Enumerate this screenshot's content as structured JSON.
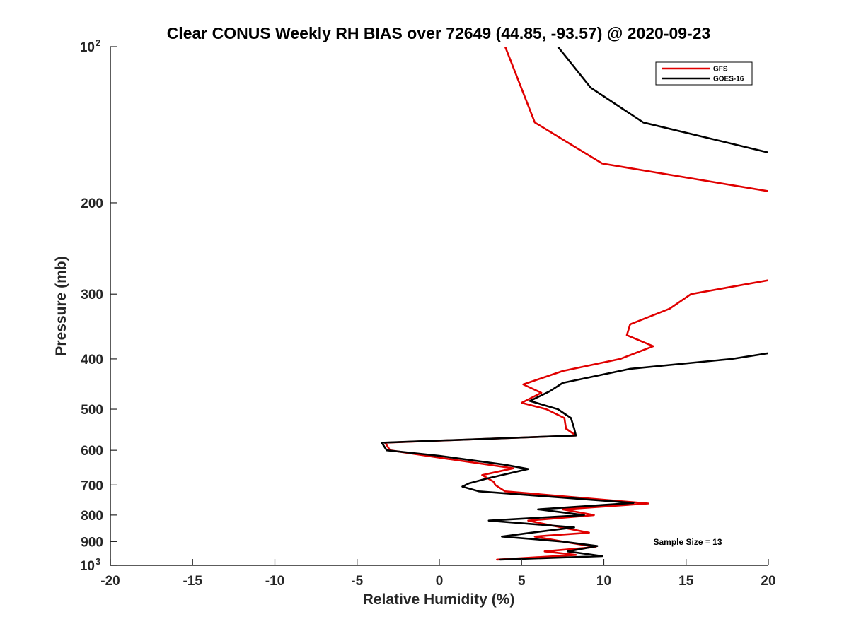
{
  "chart_data": {
    "type": "line",
    "title": "Clear CONUS Weekly RH BIAS over 72649 (44.85, -93.57) @ 2020-09-23",
    "xlabel": "Relative Humidity (%)",
    "ylabel": "Pressure (mb)",
    "xlim": [
      -20,
      20
    ],
    "ylim": [
      100,
      1000
    ],
    "yscale": "log",
    "y_reversed": true,
    "grid": false,
    "legend_position": "top-right",
    "x_ticks": [
      "-20",
      "-15",
      "-10",
      "-5",
      "0",
      "5",
      "10",
      "15",
      "20"
    ],
    "y_ticks": [
      {
        "value": 100,
        "base": "10",
        "exp": "2"
      },
      {
        "value": 200,
        "label": "200"
      },
      {
        "value": 300,
        "label": "300"
      },
      {
        "value": 400,
        "label": "400"
      },
      {
        "value": 500,
        "label": "500"
      },
      {
        "value": 600,
        "label": "600"
      },
      {
        "value": 700,
        "label": "700"
      },
      {
        "value": 800,
        "label": "800"
      },
      {
        "value": 900,
        "label": "900"
      },
      {
        "value": 1000,
        "base": "10",
        "exp": "3"
      }
    ],
    "annotation": "Sample Size = 13",
    "series": [
      {
        "name": "GFS",
        "color": "#e00000",
        "segments": [
          [
            [
              4.0,
              100
            ],
            [
              5.8,
              140
            ],
            [
              9.9,
              168
            ],
            [
              20.0,
              190
            ]
          ],
          [
            [
              20.0,
              282
            ],
            [
              15.3,
              300
            ],
            [
              14.0,
              320
            ],
            [
              11.6,
              343
            ],
            [
              11.4,
              360
            ],
            [
              13.0,
              378
            ],
            [
              11.0,
              400
            ],
            [
              7.5,
              422
            ],
            [
              5.1,
              448
            ],
            [
              6.2,
              465
            ],
            [
              5.0,
              486
            ],
            [
              6.5,
              500
            ],
            [
              7.6,
              520
            ],
            [
              7.7,
              545
            ],
            [
              8.3,
              562
            ],
            [
              -3.3,
              580
            ],
            [
              -3.0,
              600
            ],
            [
              0.0,
              620
            ],
            [
              4.5,
              650
            ],
            [
              2.6,
              670
            ],
            [
              3.3,
              690
            ],
            [
              3.4,
              700
            ],
            [
              4.0,
              720
            ],
            [
              12.7,
              760
            ],
            [
              7.5,
              780
            ],
            [
              9.4,
              800
            ],
            [
              5.4,
              820
            ],
            [
              7.0,
              840
            ],
            [
              9.1,
              865
            ],
            [
              5.8,
              880
            ],
            [
              7.5,
              900
            ],
            [
              9.5,
              922
            ],
            [
              6.4,
              940
            ],
            [
              8.3,
              955
            ],
            [
              3.5,
              975
            ]
          ]
        ]
      },
      {
        "name": "GOES-16",
        "color": "#000000",
        "segments": [
          [
            [
              7.2,
              100
            ],
            [
              9.2,
              120
            ],
            [
              12.4,
              140
            ],
            [
              20.0,
              160
            ]
          ],
          [
            [
              20.0,
              390
            ],
            [
              17.8,
              400
            ],
            [
              11.6,
              418
            ],
            [
              7.5,
              445
            ],
            [
              6.7,
              462
            ],
            [
              5.5,
              482
            ],
            [
              7.2,
              500
            ],
            [
              8.0,
              520
            ],
            [
              8.2,
              545
            ],
            [
              8.3,
              562
            ],
            [
              -3.5,
              580
            ],
            [
              -3.2,
              600
            ],
            [
              0.0,
              615
            ],
            [
              4.0,
              640
            ],
            [
              5.4,
              652
            ],
            [
              2.9,
              680
            ],
            [
              1.8,
              695
            ],
            [
              1.4,
              705
            ],
            [
              2.4,
              720
            ],
            [
              11.8,
              758
            ],
            [
              6.0,
              780
            ],
            [
              8.8,
              800
            ],
            [
              3.0,
              820
            ],
            [
              8.2,
              845
            ],
            [
              5.6,
              865
            ],
            [
              3.8,
              880
            ],
            [
              7.5,
              900
            ],
            [
              9.6,
              918
            ],
            [
              7.8,
              940
            ],
            [
              9.9,
              960
            ],
            [
              3.7,
              975
            ]
          ]
        ]
      }
    ]
  }
}
